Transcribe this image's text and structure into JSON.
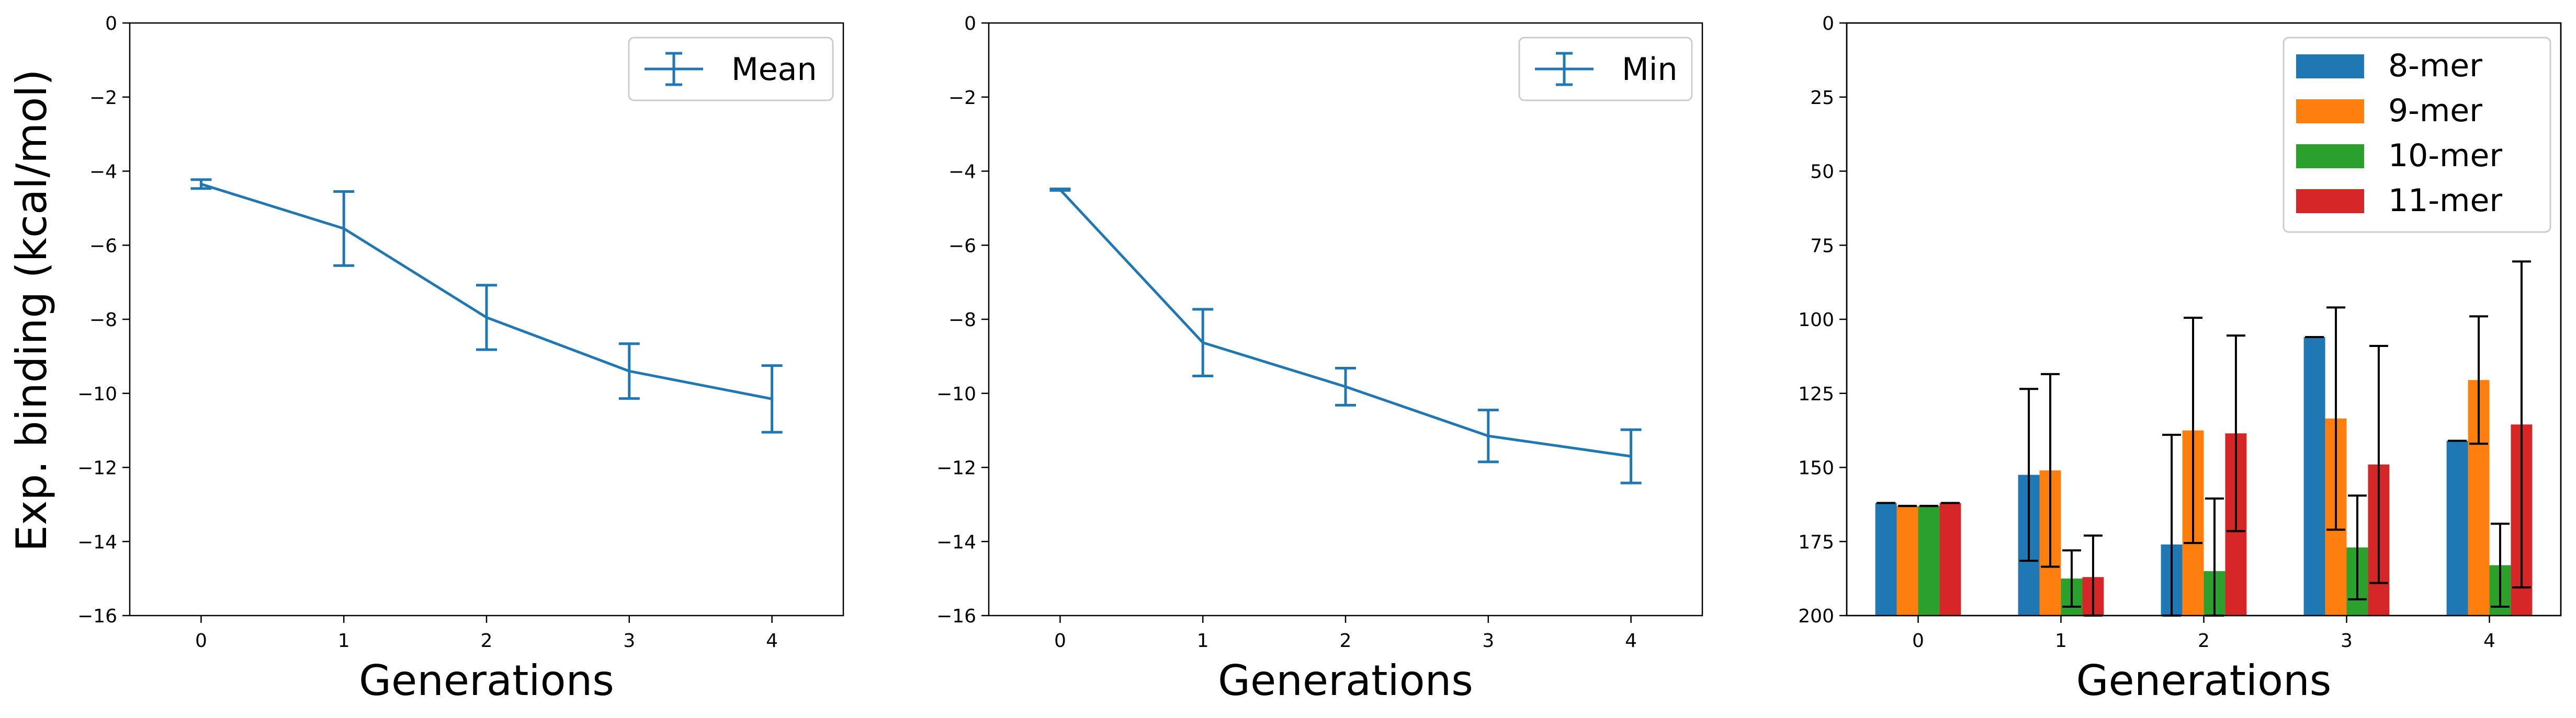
{
  "figure": {
    "ylabel": "Exp. binding (kcal/mol)"
  },
  "chart_data": [
    {
      "type": "line",
      "panel": "left",
      "title": "",
      "xlabel": "Generations",
      "ylabel": "Exp. binding (kcal/mol)",
      "xlim": [
        -0.5,
        4.5
      ],
      "ylim": [
        -16,
        0
      ],
      "x_ticks": [
        "0",
        "1",
        "2",
        "3",
        "4"
      ],
      "y_ticks": [
        "0",
        "−2",
        "−4",
        "−6",
        "−8",
        "−10",
        "−12",
        "−14",
        "−16"
      ],
      "legend_position": "top-right",
      "grid": false,
      "series": [
        {
          "name": "Mean",
          "color": "#1f77b4",
          "x": [
            0,
            1,
            2,
            3,
            4
          ],
          "y": [
            -4.35,
            -5.55,
            -7.95,
            -9.4,
            -10.15
          ],
          "yerr": [
            0.12,
            1.0,
            0.87,
            0.74,
            0.9
          ]
        }
      ]
    },
    {
      "type": "line",
      "panel": "middle",
      "title": "",
      "xlabel": "Generations",
      "ylabel": "",
      "xlim": [
        -0.5,
        4.5
      ],
      "ylim": [
        -16,
        0
      ],
      "x_ticks": [
        "0",
        "1",
        "2",
        "3",
        "4"
      ],
      "y_ticks": [
        "0",
        "−2",
        "−4",
        "−6",
        "−8",
        "−10",
        "−12",
        "−14",
        "−16"
      ],
      "legend_position": "top-right",
      "grid": false,
      "series": [
        {
          "name": "Min",
          "color": "#1f77b4",
          "x": [
            0,
            1,
            2,
            3,
            4
          ],
          "y": [
            -4.5,
            -8.63,
            -9.82,
            -11.15,
            -11.7
          ],
          "yerr": [
            0.02,
            0.9,
            0.5,
            0.7,
            0.72
          ]
        }
      ]
    },
    {
      "type": "bar",
      "panel": "right",
      "title": "",
      "xlabel": "Generations",
      "ylabel": "",
      "ylim": [
        0,
        200
      ],
      "categories": [
        "0",
        "1",
        "2",
        "3",
        "4"
      ],
      "y_ticks": [
        "0",
        "25",
        "50",
        "75",
        "100",
        "125",
        "150",
        "175",
        "200"
      ],
      "legend_position": "top-right",
      "grid": false,
      "series": [
        {
          "name": "8-mer",
          "color": "#1f77b4",
          "values": [
            38,
            47.5,
            24,
            94,
            59
          ],
          "yerr": [
            0,
            29,
            37,
            0,
            0
          ]
        },
        {
          "name": "9-mer",
          "color": "#ff7f0e",
          "values": [
            37,
            49,
            62.5,
            66.5,
            79.5
          ],
          "yerr": [
            0,
            32.5,
            38,
            37.5,
            21.5
          ]
        },
        {
          "name": "10-mer",
          "color": "#2ca02c",
          "values": [
            37,
            12.5,
            15,
            23,
            17
          ],
          "yerr": [
            0,
            9.5,
            24.5,
            17.5,
            14
          ]
        },
        {
          "name": "11-mer",
          "color": "#d62728",
          "values": [
            38,
            13,
            61.5,
            51,
            64.5
          ],
          "yerr": [
            0,
            14,
            33,
            40,
            55
          ]
        }
      ]
    }
  ]
}
